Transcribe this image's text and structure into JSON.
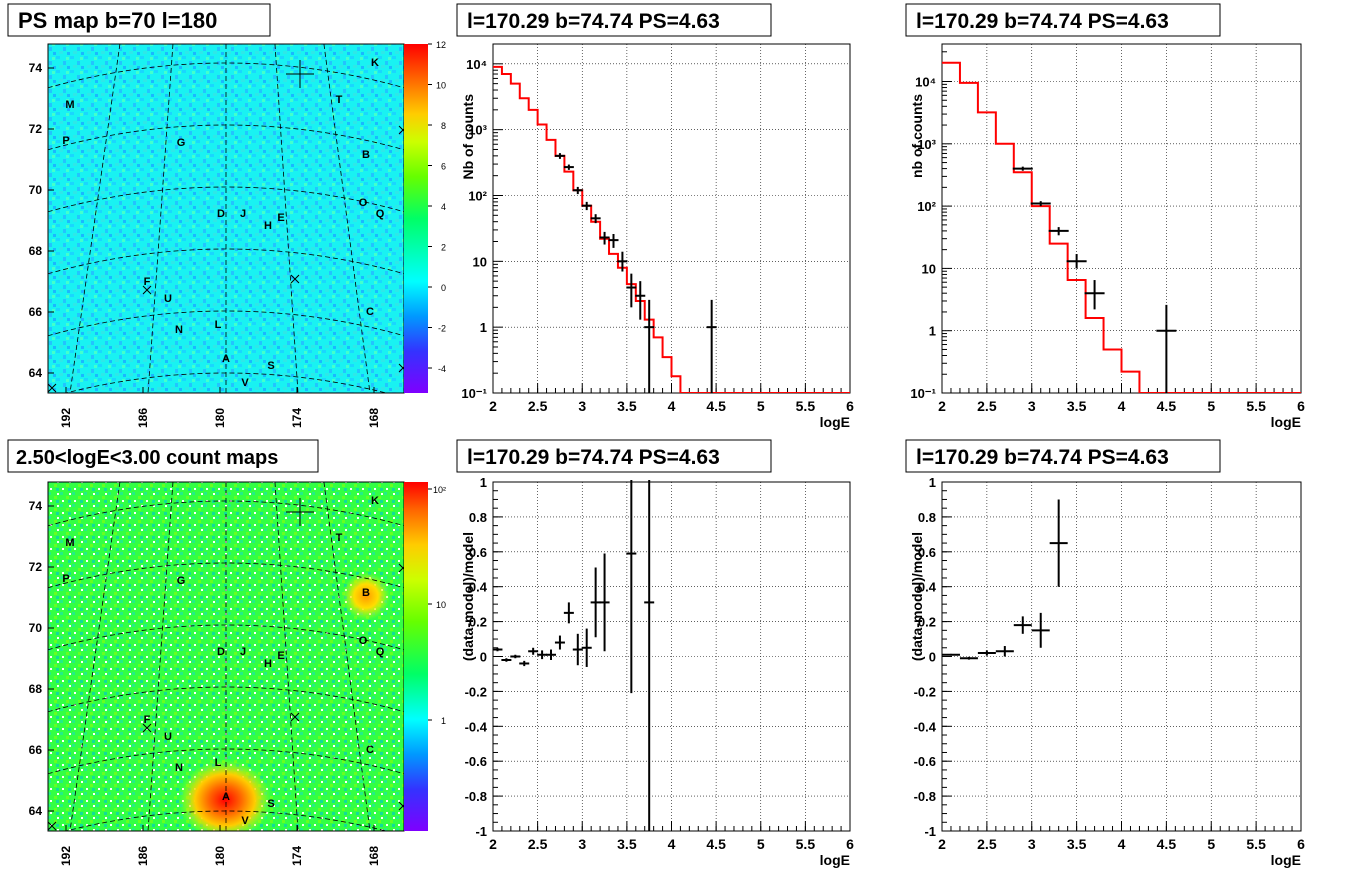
{
  "panels": {
    "ps_map": {
      "title": "PS map b=70 l=180",
      "colorbar_ticks": [
        "12",
        "10",
        "8",
        "6",
        "4",
        "2",
        "0",
        "-2",
        "-4"
      ],
      "colorbar_range": [
        -5,
        12
      ]
    },
    "count_map": {
      "title": "2.50<logE<3.00 count maps",
      "colorbar_ticks": [
        "10²",
        "10",
        "1"
      ]
    },
    "map_axes": {
      "y_ticks": [
        "74",
        "72",
        "70",
        "68",
        "66",
        "64"
      ],
      "x_ticks": [
        "192",
        "186",
        "180",
        "174",
        "168"
      ]
    },
    "source_labels": [
      "K",
      "T",
      "M",
      "P",
      "G",
      "B",
      "O",
      "Q",
      "D",
      "J",
      "E",
      "H",
      "F",
      "U",
      "C",
      "N",
      "L",
      "A",
      "S",
      "V"
    ],
    "spectrum_title": "l=170.29 b=74.74 PS=4.63"
  },
  "chart_data": [
    {
      "type": "scatter",
      "title": "l=170.29 b=74.74 PS=4.63",
      "xlabel": "logE",
      "ylabel": "Nb of counts",
      "xlim": [
        2,
        6
      ],
      "ylim": [
        0.1,
        20000
      ],
      "yscale": "log",
      "x_ticks": [
        "2",
        "2.5",
        "3",
        "3.5",
        "4",
        "4.5",
        "5",
        "5.5",
        "6"
      ],
      "y_ticks": [
        "10⁴",
        "10³",
        "10²",
        "10",
        "1",
        "10⁻¹"
      ],
      "grid": true,
      "series": [
        {
          "type": "step",
          "color": "#ff0000",
          "bin_edges": [
            2.0,
            2.1,
            2.2,
            2.3,
            2.4,
            2.5,
            2.6,
            2.7,
            2.8,
            2.9,
            3.0,
            3.1,
            3.2,
            3.3,
            3.4,
            3.5,
            3.6,
            3.7,
            3.8,
            3.9,
            4.0,
            4.1,
            6.0
          ],
          "values": [
            9000,
            7000,
            5000,
            3000,
            2000,
            1200,
            700,
            400,
            230,
            120,
            70,
            40,
            22,
            13,
            8,
            4.5,
            2.5,
            1.3,
            0.7,
            0.35,
            0.18,
            0.1
          ]
        },
        {
          "type": "errorbar",
          "color": "#000000",
          "x": [
            2.75,
            2.85,
            2.95,
            3.05,
            3.15,
            3.25,
            3.35,
            3.45,
            3.55,
            3.65,
            3.75,
            4.45
          ],
          "y": [
            400,
            270,
            120,
            70,
            45,
            23,
            21,
            10,
            4,
            3,
            1,
            1
          ],
          "y_low": [
            360,
            245,
            105,
            60,
            38,
            18,
            16,
            7,
            2,
            1.3,
            0.1,
            0.1
          ],
          "y_high": [
            440,
            295,
            135,
            80,
            52,
            28,
            26,
            14,
            6.5,
            5,
            2.6,
            2.6
          ]
        }
      ]
    },
    {
      "type": "scatter",
      "title": "l=170.29 b=74.74 PS=4.63",
      "xlabel": "logE",
      "ylabel": "nb of counts",
      "xlim": [
        2,
        6
      ],
      "ylim": [
        0.1,
        40000
      ],
      "yscale": "log",
      "x_ticks": [
        "2",
        "2.5",
        "3",
        "3.5",
        "4",
        "4.5",
        "5",
        "5.5",
        "6"
      ],
      "y_ticks": [
        "10⁴",
        "10³",
        "10²",
        "10",
        "1",
        "10⁻¹"
      ],
      "grid": true,
      "series": [
        {
          "type": "step",
          "color": "#ff0000",
          "bin_edges": [
            2.0,
            2.2,
            2.4,
            2.6,
            2.8,
            3.0,
            3.2,
            3.4,
            3.6,
            3.8,
            4.0,
            4.2,
            4.4,
            6.0
          ],
          "values": [
            20000,
            9500,
            3200,
            1000,
            350,
            100,
            25,
            6.5,
            1.6,
            0.5,
            0.22,
            0.1,
            0.1
          ]
        },
        {
          "type": "errorbar",
          "color": "#000000",
          "x": [
            2.9,
            3.1,
            3.3,
            3.5,
            3.7,
            4.5
          ],
          "y": [
            400,
            110,
            40,
            13,
            4,
            1
          ],
          "y_low": [
            370,
            100,
            34,
            10,
            2.2,
            0.1
          ],
          "y_high": [
            430,
            120,
            46,
            17,
            6.5,
            2.6
          ]
        }
      ]
    },
    {
      "type": "scatter",
      "title": "l=170.29 b=74.74 PS=4.63",
      "xlabel": "logE",
      "ylabel": "(data-model)/model",
      "xlim": [
        2,
        6
      ],
      "ylim": [
        -1,
        1
      ],
      "x_ticks": [
        "2",
        "2.5",
        "3",
        "3.5",
        "4",
        "4.5",
        "5",
        "5.5",
        "6"
      ],
      "y_ticks": [
        "1",
        "0.8",
        "0.6",
        "0.4",
        "0.2",
        "0",
        "-0.2",
        "-0.4",
        "-0.6",
        "-0.8",
        "-1"
      ],
      "grid": true,
      "series": [
        {
          "type": "errorbar",
          "color": "#000000",
          "x": [
            2.05,
            2.15,
            2.25,
            2.35,
            2.45,
            2.55,
            2.65,
            2.75,
            2.85,
            2.95,
            3.05,
            3.15,
            3.25,
            3.55,
            3.75
          ],
          "y": [
            0.04,
            -0.02,
            0.0,
            -0.04,
            0.03,
            0.01,
            0.01,
            0.08,
            0.25,
            0.04,
            0.05,
            0.31,
            0.31,
            0.59,
            0.31
          ],
          "y_err": [
            0.01,
            0.01,
            0.01,
            0.015,
            0.02,
            0.025,
            0.03,
            0.04,
            0.06,
            0.09,
            0.11,
            0.2,
            0.28,
            0.8,
            1.5
          ]
        }
      ]
    },
    {
      "type": "scatter",
      "title": "l=170.29 b=74.74 PS=4.63",
      "xlabel": "logE",
      "ylabel": "(data-model)/model",
      "xlim": [
        2,
        6
      ],
      "ylim": [
        -1,
        1
      ],
      "x_ticks": [
        "2",
        "2.5",
        "3",
        "3.5",
        "4",
        "4.5",
        "5",
        "5.5",
        "6"
      ],
      "y_ticks": [
        "1",
        "0.8",
        "0.6",
        "0.4",
        "0.2",
        "0",
        "-0.2",
        "-0.4",
        "-0.6",
        "-0.8",
        "-1"
      ],
      "grid": true,
      "series": [
        {
          "type": "errorbar",
          "color": "#000000",
          "x": [
            2.1,
            2.3,
            2.5,
            2.7,
            2.9,
            3.1,
            3.3
          ],
          "y": [
            0.01,
            -0.01,
            0.02,
            0.03,
            0.18,
            0.15,
            0.65
          ],
          "y_err": [
            0.005,
            0.008,
            0.015,
            0.03,
            0.05,
            0.1,
            0.25
          ]
        }
      ]
    }
  ]
}
